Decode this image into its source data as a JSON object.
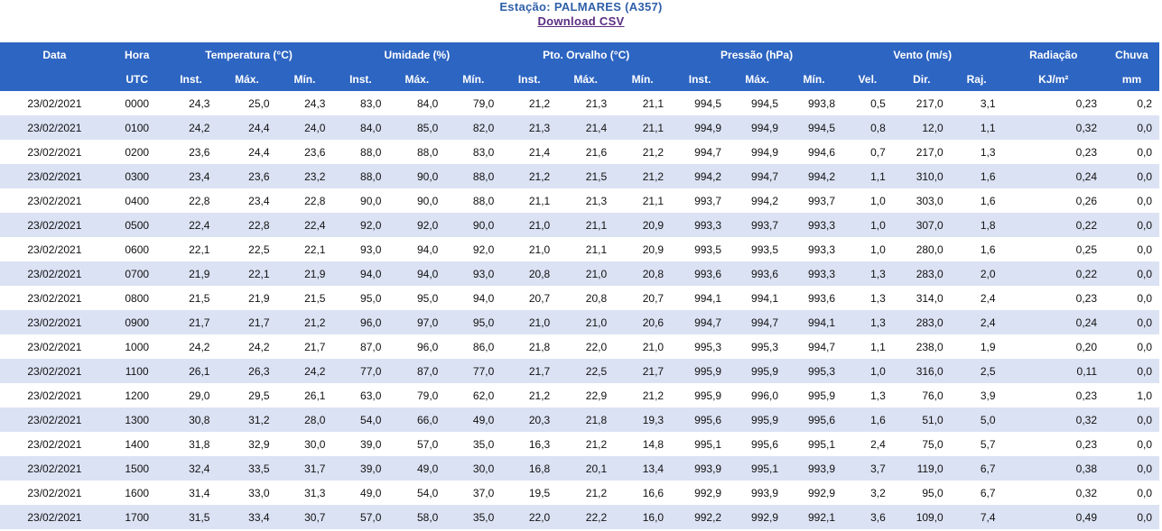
{
  "header": {
    "station": "Estação: PALMARES (A357)",
    "download": "Download CSV"
  },
  "group_headers": [
    "Data",
    "Hora",
    "Temperatura (°C)",
    "Umidade (%)",
    "Pto. Orvalho (°C)",
    "Pressão (hPa)",
    "Vento (m/s)",
    "Radiação",
    "Chuva"
  ],
  "sub_headers": [
    "",
    "UTC",
    "Inst.",
    "Máx.",
    "Mín.",
    "Inst.",
    "Máx.",
    "Mín.",
    "Inst.",
    "Máx.",
    "Mín.",
    "Inst.",
    "Máx.",
    "Mín.",
    "Vel.",
    "Dir.",
    "Raj.",
    "KJ/m²",
    "mm"
  ],
  "rows": [
    [
      "23/02/2021",
      "0000",
      "24,3",
      "25,0",
      "24,3",
      "83,0",
      "84,0",
      "79,0",
      "21,2",
      "21,3",
      "21,1",
      "994,5",
      "994,5",
      "993,8",
      "0,5",
      "217,0",
      "3,1",
      "0,23",
      "0,2"
    ],
    [
      "23/02/2021",
      "0100",
      "24,2",
      "24,4",
      "24,0",
      "84,0",
      "85,0",
      "82,0",
      "21,3",
      "21,4",
      "21,1",
      "994,9",
      "994,9",
      "994,5",
      "0,8",
      "12,0",
      "1,1",
      "0,32",
      "0,0"
    ],
    [
      "23/02/2021",
      "0200",
      "23,6",
      "24,4",
      "23,6",
      "88,0",
      "88,0",
      "83,0",
      "21,4",
      "21,6",
      "21,2",
      "994,7",
      "994,9",
      "994,6",
      "0,7",
      "217,0",
      "1,3",
      "0,23",
      "0,0"
    ],
    [
      "23/02/2021",
      "0300",
      "23,4",
      "23,6",
      "23,2",
      "88,0",
      "90,0",
      "88,0",
      "21,2",
      "21,5",
      "21,2",
      "994,2",
      "994,7",
      "994,2",
      "1,1",
      "310,0",
      "1,6",
      "0,24",
      "0,0"
    ],
    [
      "23/02/2021",
      "0400",
      "22,8",
      "23,4",
      "22,8",
      "90,0",
      "90,0",
      "88,0",
      "21,1",
      "21,3",
      "21,1",
      "993,7",
      "994,2",
      "993,7",
      "1,0",
      "303,0",
      "1,6",
      "0,26",
      "0,0"
    ],
    [
      "23/02/2021",
      "0500",
      "22,4",
      "22,8",
      "22,4",
      "92,0",
      "92,0",
      "90,0",
      "21,0",
      "21,1",
      "20,9",
      "993,3",
      "993,7",
      "993,3",
      "1,0",
      "307,0",
      "1,8",
      "0,22",
      "0,0"
    ],
    [
      "23/02/2021",
      "0600",
      "22,1",
      "22,5",
      "22,1",
      "93,0",
      "94,0",
      "92,0",
      "21,0",
      "21,1",
      "20,9",
      "993,5",
      "993,5",
      "993,3",
      "1,0",
      "280,0",
      "1,6",
      "0,25",
      "0,0"
    ],
    [
      "23/02/2021",
      "0700",
      "21,9",
      "22,1",
      "21,9",
      "94,0",
      "94,0",
      "93,0",
      "20,8",
      "21,0",
      "20,8",
      "993,6",
      "993,6",
      "993,3",
      "1,3",
      "283,0",
      "2,0",
      "0,22",
      "0,0"
    ],
    [
      "23/02/2021",
      "0800",
      "21,5",
      "21,9",
      "21,5",
      "95,0",
      "95,0",
      "94,0",
      "20,7",
      "20,8",
      "20,7",
      "994,1",
      "994,1",
      "993,6",
      "1,3",
      "314,0",
      "2,4",
      "0,23",
      "0,0"
    ],
    [
      "23/02/2021",
      "0900",
      "21,7",
      "21,7",
      "21,2",
      "96,0",
      "97,0",
      "95,0",
      "21,0",
      "21,0",
      "20,6",
      "994,7",
      "994,7",
      "994,1",
      "1,3",
      "283,0",
      "2,4",
      "0,24",
      "0,0"
    ],
    [
      "23/02/2021",
      "1000",
      "24,2",
      "24,2",
      "21,7",
      "87,0",
      "96,0",
      "86,0",
      "21,8",
      "22,0",
      "21,0",
      "995,3",
      "995,3",
      "994,7",
      "1,1",
      "238,0",
      "1,9",
      "0,20",
      "0,0"
    ],
    [
      "23/02/2021",
      "1100",
      "26,1",
      "26,3",
      "24,2",
      "77,0",
      "87,0",
      "77,0",
      "21,7",
      "22,5",
      "21,7",
      "995,9",
      "995,9",
      "995,3",
      "1,0",
      "316,0",
      "2,5",
      "0,11",
      "0,0"
    ],
    [
      "23/02/2021",
      "1200",
      "29,0",
      "29,5",
      "26,1",
      "63,0",
      "79,0",
      "62,0",
      "21,2",
      "22,9",
      "21,2",
      "995,9",
      "996,0",
      "995,9",
      "1,3",
      "76,0",
      "3,9",
      "0,23",
      "1,0"
    ],
    [
      "23/02/2021",
      "1300",
      "30,8",
      "31,2",
      "28,0",
      "54,0",
      "66,0",
      "49,0",
      "20,3",
      "21,8",
      "19,3",
      "995,6",
      "995,9",
      "995,6",
      "1,6",
      "51,0",
      "5,0",
      "0,32",
      "0,0"
    ],
    [
      "23/02/2021",
      "1400",
      "31,8",
      "32,9",
      "30,0",
      "39,0",
      "57,0",
      "35,0",
      "16,3",
      "21,2",
      "14,8",
      "995,1",
      "995,6",
      "995,1",
      "2,4",
      "75,0",
      "5,7",
      "0,23",
      "0,0"
    ],
    [
      "23/02/2021",
      "1500",
      "32,4",
      "33,5",
      "31,7",
      "39,0",
      "49,0",
      "30,0",
      "16,8",
      "20,1",
      "13,4",
      "993,9",
      "995,1",
      "993,9",
      "3,7",
      "119,0",
      "6,7",
      "0,38",
      "0,0"
    ],
    [
      "23/02/2021",
      "1600",
      "31,4",
      "33,0",
      "31,3",
      "49,0",
      "54,0",
      "37,0",
      "19,5",
      "21,2",
      "16,6",
      "992,9",
      "993,9",
      "992,9",
      "3,2",
      "95,0",
      "6,7",
      "0,32",
      "0,0"
    ],
    [
      "23/02/2021",
      "1700",
      "31,5",
      "33,4",
      "30,7",
      "57,0",
      "58,0",
      "35,0",
      "22,0",
      "22,2",
      "16,0",
      "992,2",
      "992,9",
      "992,1",
      "3,6",
      "109,0",
      "7,4",
      "0,49",
      "0,0"
    ]
  ]
}
